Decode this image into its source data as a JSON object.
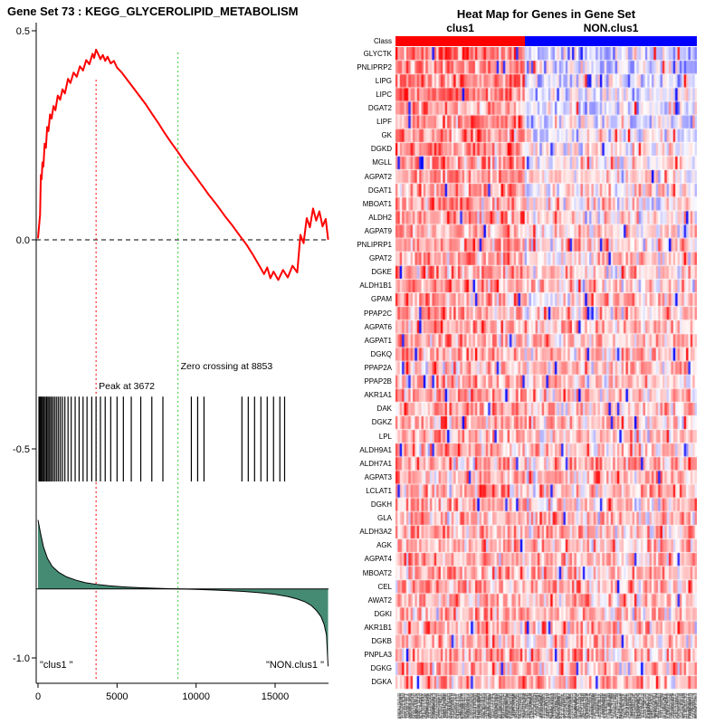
{
  "chart_data": [
    {
      "id": "enrichment-plot",
      "type": "line",
      "title": "Gene Set  73 : KEGG_GLYCEROLIPID_METABOLISM",
      "xlabel": "",
      "ylabel": "",
      "xlim": [
        0,
        18350
      ],
      "ylim": [
        -1.05,
        0.5
      ],
      "x_ticks": [
        "0",
        "5000",
        "10000",
        "15000"
      ],
      "y_ticks": [
        "0.5",
        "0.0",
        "-0.5",
        "-1.0"
      ],
      "grid": false,
      "zero_line": 0.0,
      "es_curve": {
        "name": "running enrichment score",
        "color": "#ff0000",
        "points": [
          [
            1,
            0.005
          ],
          [
            60,
            0.03
          ],
          [
            130,
            0.06
          ],
          [
            180,
            0.155
          ],
          [
            230,
            0.145
          ],
          [
            280,
            0.185
          ],
          [
            340,
            0.175
          ],
          [
            420,
            0.23
          ],
          [
            500,
            0.22
          ],
          [
            580,
            0.27
          ],
          [
            660,
            0.26
          ],
          [
            760,
            0.3
          ],
          [
            860,
            0.29
          ],
          [
            980,
            0.32
          ],
          [
            1100,
            0.31
          ],
          [
            1250,
            0.345
          ],
          [
            1400,
            0.335
          ],
          [
            1550,
            0.36
          ],
          [
            1700,
            0.35
          ],
          [
            1900,
            0.385
          ],
          [
            2050,
            0.375
          ],
          [
            2250,
            0.4
          ],
          [
            2450,
            0.39
          ],
          [
            2650,
            0.415
          ],
          [
            2850,
            0.405
          ],
          [
            3050,
            0.43
          ],
          [
            3250,
            0.42
          ],
          [
            3450,
            0.445
          ],
          [
            3550,
            0.435
          ],
          [
            3672,
            0.455
          ],
          [
            3800,
            0.445
          ],
          [
            3950,
            0.432
          ],
          [
            4100,
            0.442
          ],
          [
            4250,
            0.428
          ],
          [
            4400,
            0.438
          ],
          [
            4600,
            0.422
          ],
          [
            4800,
            0.428
          ],
          [
            5000,
            0.412
          ],
          [
            5300,
            0.4
          ],
          [
            5600,
            0.385
          ],
          [
            6000,
            0.365
          ],
          [
            6400,
            0.345
          ],
          [
            6800,
            0.325
          ],
          [
            7200,
            0.302
          ],
          [
            7600,
            0.28
          ],
          [
            8000,
            0.256
          ],
          [
            8400,
            0.234
          ],
          [
            8853,
            0.21
          ],
          [
            9300,
            0.185
          ],
          [
            9800,
            0.16
          ],
          [
            10300,
            0.134
          ],
          [
            10800,
            0.108
          ],
          [
            11300,
            0.084
          ],
          [
            11800,
            0.058
          ],
          [
            12300,
            0.034
          ],
          [
            12800,
            0.008
          ],
          [
            13200,
            -0.012
          ],
          [
            13600,
            -0.036
          ],
          [
            14000,
            -0.062
          ],
          [
            14300,
            -0.082
          ],
          [
            14500,
            -0.066
          ],
          [
            14700,
            -0.092
          ],
          [
            14900,
            -0.076
          ],
          [
            15200,
            -0.096
          ],
          [
            15500,
            -0.072
          ],
          [
            15800,
            -0.09
          ],
          [
            16100,
            -0.062
          ],
          [
            16400,
            -0.078
          ],
          [
            16600,
            0.012
          ],
          [
            16800,
            -0.008
          ],
          [
            17000,
            0.052
          ],
          [
            17200,
            0.03
          ],
          [
            17400,
            0.075
          ],
          [
            17600,
            0.046
          ],
          [
            17800,
            0.068
          ],
          [
            18000,
            0.032
          ],
          [
            18200,
            0.05
          ],
          [
            18350,
            0.002
          ]
        ]
      },
      "peak": {
        "x": 3672,
        "label": "Peak at 3672",
        "color": "#ff0000"
      },
      "zero_crossing": {
        "x": 8853,
        "label": "Zero crossing at 8853",
        "color": "#33cc33"
      },
      "hit_band": [
        -0.375,
        -0.578
      ],
      "hit_ranks": [
        60,
        120,
        180,
        240,
        300,
        380,
        460,
        540,
        620,
        700,
        790,
        880,
        980,
        1080,
        1190,
        1300,
        1420,
        1550,
        1700,
        1900,
        2100,
        2350,
        2600,
        2850,
        3100,
        3400,
        3672,
        3950,
        4250,
        4600,
        5000,
        5400,
        5900,
        6500,
        7200,
        7900,
        9700,
        10100,
        10500,
        12900,
        13300,
        13700,
        14100,
        14500,
        14900,
        15300,
        15600
      ],
      "metric_curve": {
        "name": "ranked list metric",
        "fill": "#458B74",
        "baseline": -0.835,
        "points": [
          [
            1,
            -0.67
          ],
          [
            150,
            -0.7
          ],
          [
            350,
            -0.735
          ],
          [
            600,
            -0.762
          ],
          [
            900,
            -0.781
          ],
          [
            1300,
            -0.795
          ],
          [
            1800,
            -0.806
          ],
          [
            2400,
            -0.814
          ],
          [
            3000,
            -0.82
          ],
          [
            3700,
            -0.824
          ],
          [
            4500,
            -0.8275
          ],
          [
            5400,
            -0.83
          ],
          [
            6400,
            -0.832
          ],
          [
            7600,
            -0.8335
          ],
          [
            8853,
            -0.835
          ],
          [
            10000,
            -0.836
          ],
          [
            11000,
            -0.8375
          ],
          [
            12000,
            -0.839
          ],
          [
            13000,
            -0.841
          ],
          [
            14000,
            -0.844
          ],
          [
            15000,
            -0.848
          ],
          [
            15800,
            -0.853
          ],
          [
            16400,
            -0.859
          ],
          [
            16900,
            -0.866
          ],
          [
            17300,
            -0.875
          ],
          [
            17600,
            -0.886
          ],
          [
            17900,
            -0.901
          ],
          [
            18100,
            -0.92
          ],
          [
            18250,
            -0.945
          ],
          [
            18350,
            -1.02
          ]
        ]
      },
      "group_labels": {
        "left": "\"clus1 \"",
        "right": "\"NON.clus1 \""
      },
      "annotations": {
        "peak_label_y": -0.357,
        "zero_label_y": -0.309
      }
    },
    {
      "id": "gene-heatmap",
      "type": "heatmap",
      "title": "Heat Map for Genes in Gene Set",
      "class_row_label": "Class",
      "classes": [
        {
          "label": "clus1",
          "color": "#ff0000",
          "fraction": 0.43
        },
        {
          "label": "NON.clus1",
          "color": "#0000ff",
          "fraction": 0.57
        }
      ],
      "genes": [
        "GLYCTK",
        "PNLIPRP2",
        "LIPG",
        "LIPC",
        "DGAT2",
        "LIPF",
        "GK",
        "DGKD",
        "MGLL",
        "AGPAT2",
        "DGAT1",
        "MBOAT1",
        "ALDH2",
        "AGPAT9",
        "PNLIPRP1",
        "GPAT2",
        "DGKE",
        "ALDH1B1",
        "GPAM",
        "PPAP2C",
        "AGPAT6",
        "AGPAT1",
        "DGKQ",
        "PPAP2A",
        "PPAP2B",
        "AKR1A1",
        "DAK",
        "DGKZ",
        "LPL",
        "ALDH9A1",
        "ALDH7A1",
        "AGPAT3",
        "LCLAT1",
        "DGKH",
        "GLA",
        "ALDH3A2",
        "AGK",
        "AGPAT4",
        "MBOAT2",
        "CEL",
        "AWAT2",
        "DGKI",
        "AKR1B1",
        "DGKB",
        "PNPLA3",
        "DGKG",
        "DGKA"
      ],
      "heatmap": {
        "n_columns": 140,
        "seed": 73,
        "palette": {
          "low": "#0000ff",
          "mid": "#ffffff",
          "high": "#ff0000"
        },
        "legend_position": "none"
      }
    }
  ]
}
